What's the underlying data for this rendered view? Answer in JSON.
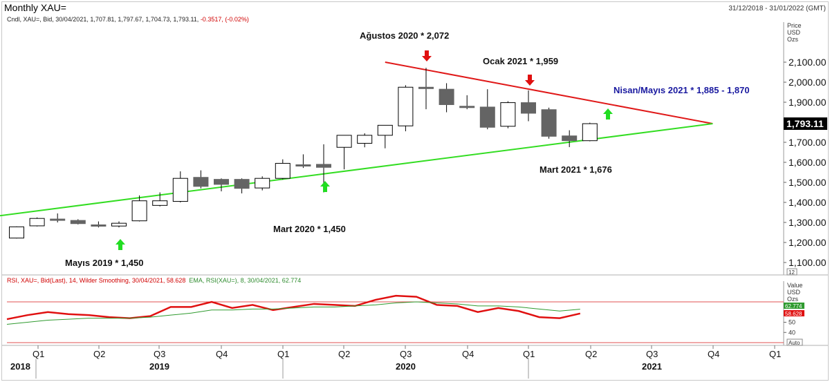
{
  "header": {
    "title": "Monthly XAU=",
    "date_range": "31/12/2018 - 31/01/2022 (GMT)",
    "info_prefix": "Cndl, XAU=, Bid, 30/04/2021, 1,707.81, 1,797.67, 1,704.73, 1,793.11,",
    "info_change": "-0.3517, (-0.02%)"
  },
  "price_axis": {
    "label1": "Price",
    "label2": "USD",
    "label3": "Ozs",
    "current_price": "1,793.11",
    "scale_box": "12"
  },
  "rsi_axis": {
    "label1": "Value",
    "label2": "USD",
    "label3": "Ozs",
    "ema_value": "62.774",
    "rsi_value": "58.628",
    "auto_label": "Auto"
  },
  "rsi_info": {
    "rsi": "RSI, XAU=, Bid(Last), 14, Wilder Smoothing, 30/04/2021, 58.628",
    "ema": "EMA, RSI(XAU=), 8, 30/04/2021, 62.774"
  },
  "colors": {
    "up": "#ffffff",
    "down": "#646464",
    "resistance": "#e01818",
    "support": "#33dd22",
    "rsi": "#e01010",
    "ema": "#2e9a2e",
    "label_blue": "#1a1aa0"
  },
  "chart_data": [
    {
      "type": "candlestick",
      "title": "Monthly XAU=",
      "ylabel": "Price USD Ozs",
      "ylim": [
        1070,
        2170
      ],
      "yticks": [
        "1,100.00",
        "1,200.00",
        "1,300.00",
        "1,400.00",
        "1,500.00",
        "1,600.00",
        "1,700.00",
        "1,800.00",
        "1,900.00",
        "2,000.00",
        "2,100.00"
      ],
      "ytick_values": [
        1100,
        1200,
        1300,
        1400,
        1500,
        1600,
        1700,
        1800,
        1900,
        2000,
        2100
      ],
      "months": [
        "2018-01",
        "2018-02",
        "2018-03",
        "2018-04",
        "2018-05",
        "2018-06",
        "2018-07",
        "2018-08",
        "2018-09",
        "2018-10",
        "2018-11",
        "2018-12",
        "2019-01",
        "2019-02",
        "2019-03",
        "2019-04",
        "2019-05",
        "2019-06",
        "2019-07",
        "2019-08",
        "2019-09",
        "2019-10",
        "2019-11",
        "2019-12",
        "2020-01",
        "2020-02",
        "2020-03",
        "2020-04",
        "2020-05",
        "2020-06",
        "2020-07",
        "2020-08",
        "2020-09",
        "2020-10",
        "2020-11",
        "2020-12",
        "2021-01",
        "2021-02",
        "2021-03",
        "2021-04"
      ],
      "candles": [
        {
          "i": 0,
          "o": 1222,
          "h": 1280,
          "l": 1220,
          "c": 1278
        },
        {
          "i": 1,
          "o": 1283,
          "h": 1325,
          "l": 1280,
          "c": 1320
        },
        {
          "i": 2,
          "o": 1317,
          "h": 1345,
          "l": 1300,
          "c": 1315
        },
        {
          "i": 3,
          "o": 1310,
          "h": 1316,
          "l": 1290,
          "c": 1294
        },
        {
          "i": 4,
          "o": 1288,
          "h": 1305,
          "l": 1275,
          "c": 1286
        },
        {
          "i": 5,
          "o": 1282,
          "h": 1305,
          "l": 1275,
          "c": 1296
        },
        {
          "i": 6,
          "o": 1308,
          "h": 1435,
          "l": 1305,
          "c": 1408
        },
        {
          "i": 7,
          "o": 1385,
          "h": 1450,
          "l": 1380,
          "c": 1408
        },
        {
          "i": 8,
          "o": 1405,
          "h": 1555,
          "l": 1400,
          "c": 1520
        },
        {
          "i": 9,
          "o": 1525,
          "h": 1560,
          "l": 1470,
          "c": 1480
        },
        {
          "i": 10,
          "o": 1515,
          "h": 1520,
          "l": 1455,
          "c": 1490
        },
        {
          "i": 11,
          "o": 1515,
          "h": 1520,
          "l": 1445,
          "c": 1470
        },
        {
          "i": 12,
          "o": 1472,
          "h": 1530,
          "l": 1460,
          "c": 1520
        },
        {
          "i": 13,
          "o": 1520,
          "h": 1615,
          "l": 1515,
          "c": 1595
        },
        {
          "i": 14,
          "o": 1588,
          "h": 1640,
          "l": 1572,
          "c": 1586
        },
        {
          "i": 15,
          "o": 1590,
          "h": 1690,
          "l": 1450,
          "c": 1575
        },
        {
          "i": 16,
          "o": 1675,
          "h": 1735,
          "l": 1565,
          "c": 1735
        },
        {
          "i": 17,
          "o": 1695,
          "h": 1745,
          "l": 1675,
          "c": 1735
        },
        {
          "i": 18,
          "o": 1735,
          "h": 1785,
          "l": 1670,
          "c": 1785
        },
        {
          "i": 19,
          "o": 1782,
          "h": 1985,
          "l": 1755,
          "c": 1975
        },
        {
          "i": 20,
          "o": 1975,
          "h": 2072,
          "l": 1865,
          "c": 1968
        },
        {
          "i": 21,
          "o": 1965,
          "h": 1995,
          "l": 1850,
          "c": 1888
        },
        {
          "i": 22,
          "o": 1880,
          "h": 1935,
          "l": 1865,
          "c": 1878
        },
        {
          "i": 23,
          "o": 1876,
          "h": 1965,
          "l": 1765,
          "c": 1775
        },
        {
          "i": 24,
          "o": 1780,
          "h": 1905,
          "l": 1770,
          "c": 1898
        },
        {
          "i": 25,
          "o": 1898,
          "h": 1959,
          "l": 1805,
          "c": 1845
        },
        {
          "i": 26,
          "o": 1863,
          "h": 1873,
          "l": 1718,
          "c": 1730
        },
        {
          "i": 27,
          "o": 1732,
          "h": 1760,
          "l": 1676,
          "c": 1708
        },
        {
          "i": 28,
          "o": 1708,
          "h": 1798,
          "l": 1705,
          "c": 1793
        }
      ],
      "trendlines": [
        {
          "name": "resistance",
          "from": [
            "2020-07",
            2100
          ],
          "to": [
            "2021-11",
            1793
          ]
        },
        {
          "name": "support",
          "from": [
            "2018-06",
            1252
          ],
          "to": [
            "2021-11",
            1793
          ]
        }
      ],
      "annotations": [
        {
          "text": "Ağustos 2020 * 2,072",
          "color": "black"
        },
        {
          "text": "Ocak 2021 * 1,959",
          "color": "black"
        },
        {
          "text": "Nisan/Mayıs 2021 * 1,885 - 1,870",
          "color": "blue"
        },
        {
          "text": "Mart 2021 * 1,676",
          "color": "black"
        },
        {
          "text": "Mart 2020 * 1,450",
          "color": "black"
        },
        {
          "text": "Mayıs 2019 * 1,450",
          "color": "black"
        }
      ],
      "xaxis": {
        "quarters": [
          "Q1",
          "Q2",
          "Q3",
          "Q4",
          "Q1",
          "Q2",
          "Q3",
          "Q4",
          "Q1",
          "Q2",
          "Q3",
          "Q4",
          "Q1"
        ],
        "years": [
          "2018",
          "2019",
          "2020",
          "2021"
        ]
      }
    },
    {
      "type": "line",
      "title": "RSI",
      "ylim": [
        20,
        100
      ],
      "yticks": [
        "40",
        "50"
      ],
      "ytick_values": [
        40,
        50
      ],
      "reference_lines": [
        70,
        30
      ],
      "series": [
        {
          "name": "RSI",
          "values": [
            53,
            57,
            60,
            58,
            57,
            55,
            54,
            56,
            65,
            65,
            70,
            64,
            67,
            62,
            65,
            68,
            67,
            66,
            72,
            76,
            75,
            67,
            66,
            60,
            64,
            61,
            55,
            54,
            58.6
          ]
        },
        {
          "name": "EMA",
          "values": [
            48,
            50,
            52,
            53,
            54,
            54,
            54,
            55,
            57,
            59,
            62,
            62,
            63,
            63,
            64,
            65,
            65,
            66,
            67,
            69,
            70,
            69,
            68,
            66,
            66,
            65,
            63,
            61,
            62.8
          ]
        }
      ]
    }
  ]
}
